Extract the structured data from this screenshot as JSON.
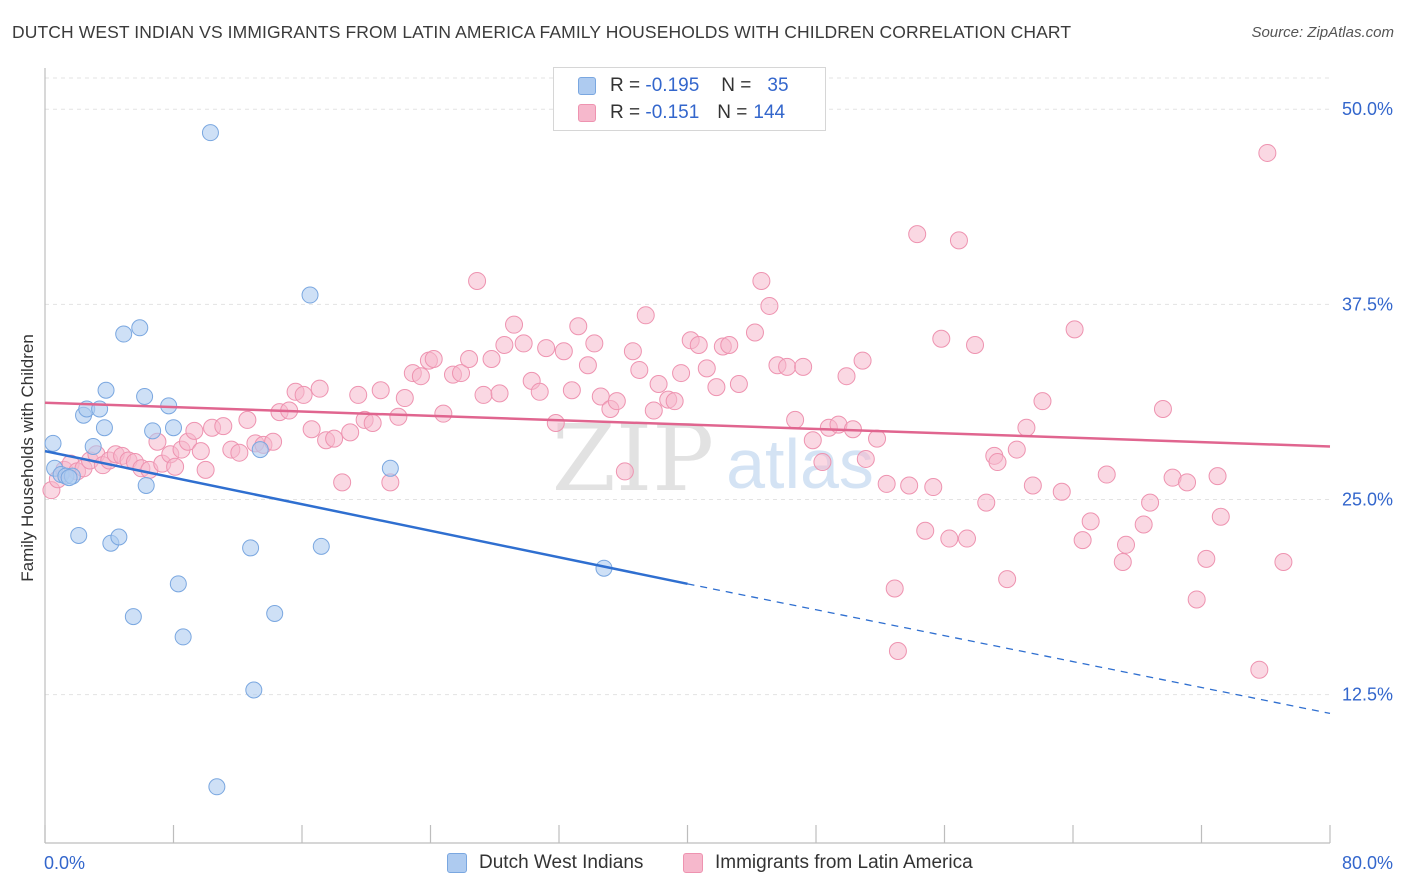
{
  "header": {
    "title": "DUTCH WEST INDIAN VS IMMIGRANTS FROM LATIN AMERICA FAMILY HOUSEHOLDS WITH CHILDREN CORRELATION CHART",
    "source": "Source: ZipAtlas.com"
  },
  "legend": {
    "row1": {
      "r_label": "R =",
      "r_value": "-0.195",
      "n_label": "N =",
      "n_value": "35"
    },
    "row2": {
      "r_label": "R =",
      "r_value": "-0.151",
      "n_label": "N =",
      "n_value": "144"
    }
  },
  "watermark": {
    "zip": "ZIP",
    "atlas": "atlas"
  },
  "colors": {
    "blue_fill": "#aecbf0",
    "blue_stroke": "#7aa7e0",
    "blue_line": "#2f6fd0",
    "pink_fill": "#f6b8cc",
    "pink_stroke": "#ee93b0",
    "pink_line": "#e0658f",
    "tick_label": "#3366cc",
    "grid": "#e3e3e3"
  },
  "chart_data": {
    "type": "scatter",
    "title": "DUTCH WEST INDIAN VS IMMIGRANTS FROM LATIN AMERICA FAMILY HOUSEHOLDS WITH CHILDREN CORRELATION CHART",
    "xlabel": "",
    "ylabel": "Family Households with Children",
    "xlim": [
      0,
      80
    ],
    "ylim": [
      3,
      52
    ],
    "x_tick_labels": [
      "0.0%",
      "80.0%"
    ],
    "y_ticks": [
      12.5,
      25.0,
      37.5,
      50.0
    ],
    "y_tick_labels": [
      "12.5%",
      "25.0%",
      "37.5%",
      "50.0%"
    ],
    "grid": true,
    "legend_position": "top-center",
    "series": [
      {
        "name": "Dutch West Indians",
        "r": -0.195,
        "n": 35,
        "points": [
          [
            0.5,
            28.6
          ],
          [
            0.6,
            27.0
          ],
          [
            1.0,
            26.6
          ],
          [
            1.3,
            26.5
          ],
          [
            1.7,
            26.5
          ],
          [
            2.1,
            22.7
          ],
          [
            2.4,
            30.4
          ],
          [
            2.6,
            30.8
          ],
          [
            3.0,
            28.4
          ],
          [
            3.4,
            30.8
          ],
          [
            3.7,
            29.6
          ],
          [
            3.8,
            32.0
          ],
          [
            4.1,
            22.2
          ],
          [
            4.6,
            22.6
          ],
          [
            4.9,
            35.6
          ],
          [
            5.5,
            17.5
          ],
          [
            5.9,
            36.0
          ],
          [
            6.2,
            31.6
          ],
          [
            6.3,
            25.9
          ],
          [
            6.7,
            29.4
          ],
          [
            7.7,
            31.0
          ],
          [
            8.0,
            29.6
          ],
          [
            8.3,
            19.6
          ],
          [
            8.6,
            16.2
          ],
          [
            10.3,
            48.5
          ],
          [
            10.7,
            6.6
          ],
          [
            12.8,
            21.9
          ],
          [
            13.0,
            12.8
          ],
          [
            13.4,
            28.2
          ],
          [
            14.3,
            17.7
          ],
          [
            16.5,
            38.1
          ],
          [
            17.2,
            22.0
          ],
          [
            21.5,
            27.0
          ],
          [
            34.8,
            20.6
          ],
          [
            1.5,
            26.4
          ]
        ],
        "trend": {
          "x0": 0,
          "y0": 28.1,
          "x1": 40,
          "y1": 19.6,
          "dashed_to_x": 80,
          "dashed_to_y": 11.3
        }
      },
      {
        "name": "Immigrants from Latin America",
        "r": -0.151,
        "n": 144,
        "points": [
          [
            0.4,
            25.6
          ],
          [
            0.8,
            26.3
          ],
          [
            1.2,
            26.9
          ],
          [
            1.6,
            27.3
          ],
          [
            2.0,
            26.8
          ],
          [
            2.4,
            27.0
          ],
          [
            2.8,
            27.5
          ],
          [
            3.2,
            27.9
          ],
          [
            3.6,
            27.2
          ],
          [
            4.0,
            27.5
          ],
          [
            4.4,
            27.9
          ],
          [
            4.8,
            27.8
          ],
          [
            5.2,
            27.5
          ],
          [
            5.6,
            27.4
          ],
          [
            6.0,
            27.0
          ],
          [
            6.5,
            26.9
          ],
          [
            7.0,
            28.7
          ],
          [
            7.3,
            27.3
          ],
          [
            7.8,
            27.9
          ],
          [
            8.1,
            27.1
          ],
          [
            8.5,
            28.2
          ],
          [
            8.9,
            28.7
          ],
          [
            9.3,
            29.4
          ],
          [
            9.7,
            28.1
          ],
          [
            10.0,
            26.9
          ],
          [
            10.4,
            29.6
          ],
          [
            11.1,
            29.7
          ],
          [
            11.6,
            28.2
          ],
          [
            12.1,
            28.0
          ],
          [
            12.6,
            30.1
          ],
          [
            13.1,
            28.6
          ],
          [
            13.6,
            28.5
          ],
          [
            14.2,
            28.7
          ],
          [
            14.6,
            30.6
          ],
          [
            15.2,
            30.7
          ],
          [
            15.6,
            31.9
          ],
          [
            16.1,
            31.7
          ],
          [
            16.6,
            29.5
          ],
          [
            17.1,
            32.1
          ],
          [
            17.5,
            28.8
          ],
          [
            18.0,
            28.9
          ],
          [
            18.5,
            26.1
          ],
          [
            19.0,
            29.3
          ],
          [
            19.5,
            31.7
          ],
          [
            19.9,
            30.1
          ],
          [
            20.4,
            29.9
          ],
          [
            20.9,
            32.0
          ],
          [
            21.5,
            26.1
          ],
          [
            22.0,
            30.3
          ],
          [
            22.4,
            31.5
          ],
          [
            22.9,
            33.1
          ],
          [
            23.4,
            32.9
          ],
          [
            23.9,
            33.9
          ],
          [
            24.2,
            34.0
          ],
          [
            24.8,
            30.5
          ],
          [
            25.4,
            33.0
          ],
          [
            25.9,
            33.1
          ],
          [
            26.4,
            34.0
          ],
          [
            26.9,
            39.0
          ],
          [
            27.3,
            31.7
          ],
          [
            27.8,
            34.0
          ],
          [
            28.3,
            31.8
          ],
          [
            28.6,
            34.9
          ],
          [
            29.2,
            36.2
          ],
          [
            29.8,
            35.0
          ],
          [
            30.3,
            32.6
          ],
          [
            30.8,
            31.9
          ],
          [
            31.2,
            34.7
          ],
          [
            31.8,
            29.9
          ],
          [
            32.3,
            34.5
          ],
          [
            32.8,
            32.0
          ],
          [
            33.2,
            36.1
          ],
          [
            33.8,
            33.6
          ],
          [
            34.2,
            35.0
          ],
          [
            34.6,
            31.6
          ],
          [
            35.2,
            30.8
          ],
          [
            35.6,
            31.3
          ],
          [
            36.1,
            26.8
          ],
          [
            36.6,
            34.5
          ],
          [
            37.0,
            33.3
          ],
          [
            37.4,
            36.8
          ],
          [
            37.9,
            30.7
          ],
          [
            38.2,
            32.4
          ],
          [
            38.8,
            31.4
          ],
          [
            39.2,
            31.3
          ],
          [
            39.6,
            33.1
          ],
          [
            40.2,
            35.2
          ],
          [
            40.7,
            34.9
          ],
          [
            41.2,
            33.4
          ],
          [
            41.8,
            32.2
          ],
          [
            42.2,
            34.8
          ],
          [
            42.6,
            34.9
          ],
          [
            43.2,
            32.4
          ],
          [
            44.2,
            35.7
          ],
          [
            44.6,
            39.0
          ],
          [
            45.1,
            37.4
          ],
          [
            45.6,
            33.6
          ],
          [
            46.2,
            33.5
          ],
          [
            46.7,
            30.1
          ],
          [
            47.2,
            33.5
          ],
          [
            47.8,
            28.8
          ],
          [
            48.4,
            27.4
          ],
          [
            48.8,
            29.6
          ],
          [
            49.4,
            29.8
          ],
          [
            49.9,
            32.9
          ],
          [
            50.3,
            29.5
          ],
          [
            50.9,
            33.9
          ],
          [
            51.1,
            27.6
          ],
          [
            51.8,
            28.9
          ],
          [
            52.4,
            26.0
          ],
          [
            52.9,
            19.3
          ],
          [
            53.1,
            15.3
          ],
          [
            53.8,
            25.9
          ],
          [
            54.3,
            42.0
          ],
          [
            54.8,
            23.0
          ],
          [
            55.3,
            25.8
          ],
          [
            55.8,
            35.3
          ],
          [
            56.3,
            22.5
          ],
          [
            56.9,
            41.6
          ],
          [
            57.4,
            22.5
          ],
          [
            57.9,
            34.9
          ],
          [
            58.6,
            24.8
          ],
          [
            59.1,
            27.8
          ],
          [
            59.3,
            27.4
          ],
          [
            59.9,
            19.9
          ],
          [
            60.5,
            28.2
          ],
          [
            61.1,
            29.6
          ],
          [
            61.5,
            25.9
          ],
          [
            62.1,
            31.3
          ],
          [
            63.3,
            25.5
          ],
          [
            64.1,
            35.9
          ],
          [
            64.6,
            22.4
          ],
          [
            65.1,
            23.6
          ],
          [
            66.1,
            26.6
          ],
          [
            67.1,
            21.0
          ],
          [
            67.3,
            22.1
          ],
          [
            68.4,
            23.4
          ],
          [
            68.8,
            24.8
          ],
          [
            69.6,
            30.8
          ],
          [
            70.2,
            26.4
          ],
          [
            71.1,
            26.1
          ],
          [
            71.7,
            18.6
          ],
          [
            72.3,
            21.2
          ],
          [
            73.2,
            23.9
          ],
          [
            75.6,
            14.1
          ],
          [
            76.1,
            47.2
          ],
          [
            77.1,
            21.0
          ],
          [
            73.0,
            26.5
          ]
        ],
        "trend": {
          "x0": 0,
          "y0": 31.2,
          "x1": 80,
          "y1": 28.4
        }
      }
    ]
  },
  "bottom_legend": {
    "item1": "Dutch West Indians",
    "item2": "Immigrants from Latin America"
  }
}
